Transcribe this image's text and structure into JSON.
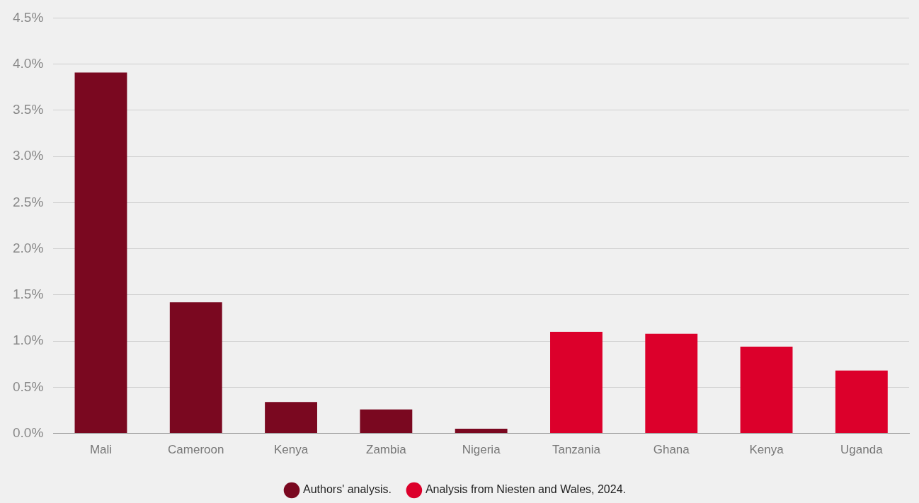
{
  "chart_data": {
    "type": "bar",
    "categories": [
      "Mali",
      "Cameroon",
      "Kenya",
      "Zambia",
      "Nigeria",
      "Tanzania",
      "Ghana",
      "Kenya",
      "Uganda"
    ],
    "series": [
      {
        "name": "Authors' analysis.",
        "color": "#7a0820",
        "values": [
          3.91,
          1.42,
          0.34,
          0.26,
          0.05,
          null,
          null,
          null,
          null
        ]
      },
      {
        "name": "Analysis from Niesten and Wales, 2024.",
        "color": "#dc002b",
        "values": [
          null,
          null,
          null,
          null,
          null,
          1.1,
          1.08,
          0.94,
          0.68
        ]
      }
    ],
    "ylim": [
      0,
      4.5
    ],
    "yticks": [
      {
        "value": 0,
        "label": "0.0%"
      },
      {
        "value": 0.5,
        "label": "0.5%"
      },
      {
        "value": 1,
        "label": "1.0%"
      },
      {
        "value": 1.5,
        "label": "1.5%"
      },
      {
        "value": 2,
        "label": "2.0%"
      },
      {
        "value": 2.5,
        "label": "2.5%"
      },
      {
        "value": 3,
        "label": "3.0%"
      },
      {
        "value": 3.5,
        "label": "3.5%"
      },
      {
        "value": 4,
        "label": "4.0%"
      },
      {
        "value": 4.5,
        "label": "4.5%"
      }
    ],
    "grid": "y",
    "legend": "bottom"
  }
}
